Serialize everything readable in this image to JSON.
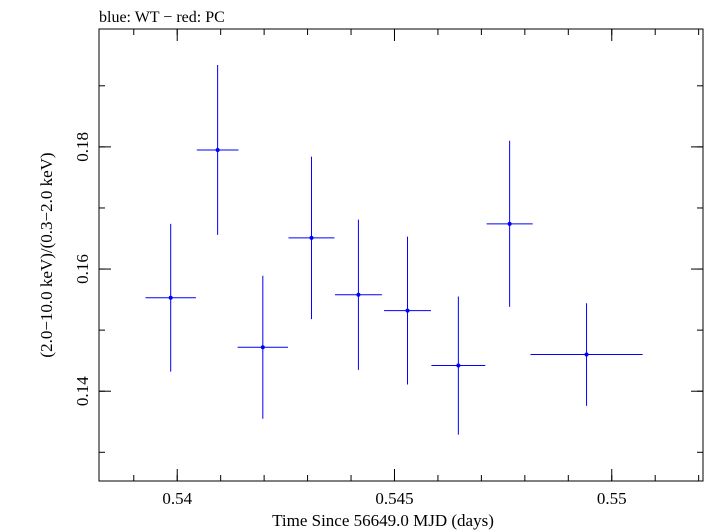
{
  "chart_data": {
    "type": "scatter",
    "title": "blue: WT − red: PC",
    "xlabel": "Time Since 56649.0 MJD (days)",
    "ylabel": "(2.0−10.0 keV)/(0.3−2.0 keV)",
    "xlim": [
      0.5382,
      0.5521
    ],
    "ylim": [
      0.1253,
      0.1993
    ],
    "x_ticks": [
      {
        "value": 0.54,
        "label": "0.54"
      },
      {
        "value": 0.545,
        "label": "0.545"
      },
      {
        "value": 0.55,
        "label": "0.55"
      }
    ],
    "y_ticks": [
      {
        "value": 0.14,
        "label": "0.14"
      },
      {
        "value": 0.16,
        "label": "0.16"
      },
      {
        "value": 0.18,
        "label": "0.18"
      }
    ],
    "x_minor_step": 0.001,
    "y_minor_step": 0.01,
    "series": [
      {
        "name": "WT",
        "color": "#0000ff",
        "points": [
          {
            "x": 0.53985,
            "xerr": 0.00058,
            "y": 0.1553,
            "yerr": 0.0121
          },
          {
            "x": 0.54093,
            "xerr": 0.00048,
            "y": 0.1795,
            "yerr": 0.0139
          },
          {
            "x": 0.54197,
            "xerr": 0.00058,
            "y": 0.1472,
            "yerr": 0.0117
          },
          {
            "x": 0.54309,
            "xerr": 0.00053,
            "y": 0.1651,
            "yerr": 0.0133
          },
          {
            "x": 0.54417,
            "xerr": 0.00054,
            "y": 0.1558,
            "yerr": 0.0123
          },
          {
            "x": 0.5453,
            "xerr": 0.00054,
            "y": 0.1532,
            "yerr": 0.0121
          },
          {
            "x": 0.54647,
            "xerr": 0.00062,
            "y": 0.1442,
            "yerr": 0.0113
          },
          {
            "x": 0.54765,
            "xerr": 0.00053,
            "y": 0.1674,
            "yerr": 0.0136
          },
          {
            "x": 0.54942,
            "xerr": 0.00129,
            "y": 0.146,
            "yerr": 0.0084
          }
        ]
      }
    ]
  }
}
